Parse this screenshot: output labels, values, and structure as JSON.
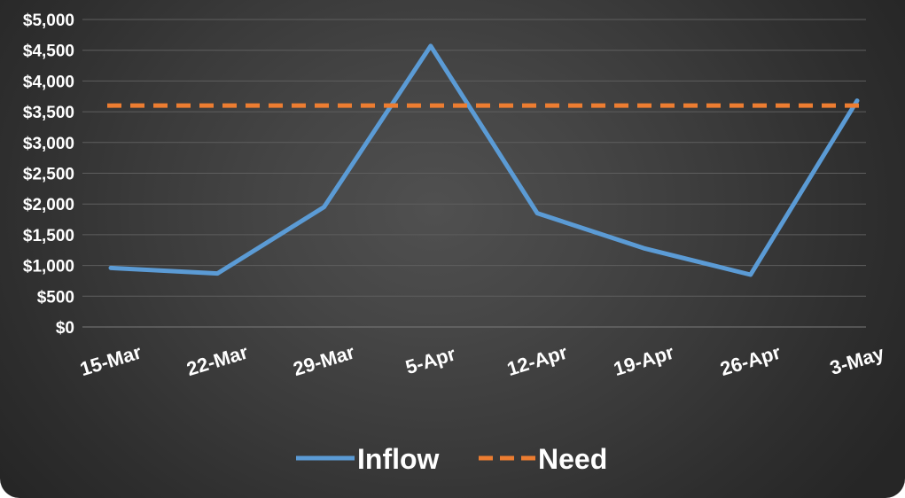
{
  "chart_data": {
    "type": "line",
    "categories": [
      "15-Mar",
      "22-Mar",
      "29-Mar",
      "5-Apr",
      "12-Apr",
      "19-Apr",
      "26-Apr",
      "3-May"
    ],
    "series": [
      {
        "name": "Inflow",
        "values": [
          960,
          870,
          1950,
          4570,
          1850,
          1280,
          850,
          3680
        ],
        "color": "#5b9bd5",
        "style": "solid"
      },
      {
        "name": "Need",
        "values": [
          3600,
          3600,
          3600,
          3600,
          3600,
          3600,
          3600,
          3600
        ],
        "color": "#ed7d31",
        "style": "dashed"
      }
    ],
    "yticks": [
      "$0",
      "$500",
      "$1,000",
      "$1,500",
      "$2,000",
      "$2,500",
      "$3,000",
      "$3,500",
      "$4,000",
      "$4,500",
      "$5,000"
    ],
    "ylim": [
      0,
      5000
    ],
    "grid": true,
    "legend_position": "bottom",
    "title": "",
    "xlabel": "",
    "ylabel": ""
  }
}
